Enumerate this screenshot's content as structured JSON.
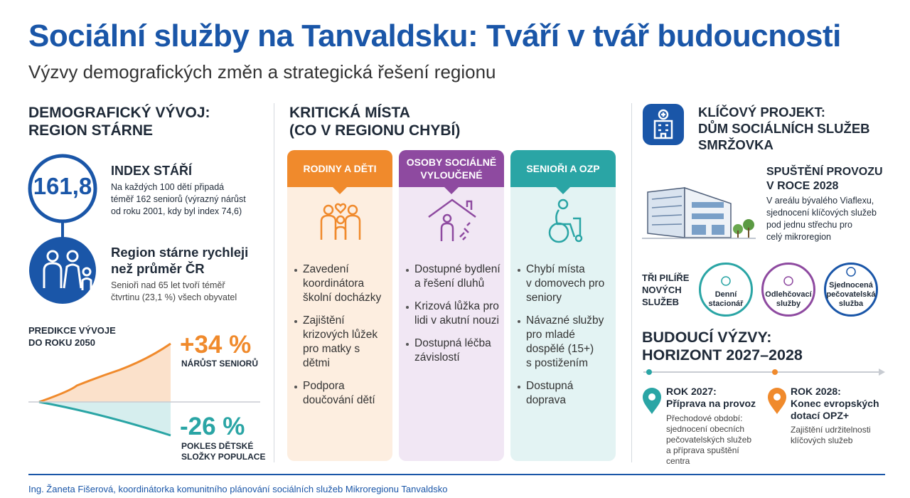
{
  "header": {
    "title": "Sociální služby na Tanvaldsku: Tváří v tvář budoucnosti",
    "subtitle": "Výzvy demografických změn a strategická řešení regionu"
  },
  "demography": {
    "heading": [
      "DEMOGRAFICKÝ VÝVOJ:",
      "REGION STÁRNE"
    ],
    "index": {
      "value": "161,8",
      "title": "INDEX STÁŘÍ",
      "text": [
        "Na každých 100 dětí připadá",
        "téměř 162 seniorů (výrazný nárůst",
        "od roku 2001, kdy byl index 74,6)"
      ]
    },
    "aging": {
      "title": [
        "Region stárne rychleji",
        "než průměr ČR"
      ],
      "text": [
        "Senioři nad 65 let tvoří téměř",
        "čtvrtinu (23,1 %) všech obyvatel"
      ]
    },
    "prediction": {
      "title": [
        "PREDIKCE VÝVOJE",
        "DO ROKU 2050"
      ],
      "growth": "+34 %",
      "growth_label": [
        "NÁRŮST SENIORŮ"
      ],
      "decline": "-26 %",
      "decline_label": [
        "POKLES DĚTSKÉ",
        "SLOŽKY POPULACE"
      ]
    }
  },
  "critical": {
    "heading": [
      "KRITICKÁ MÍSTA",
      "(CO V REGIONU CHYBÍ)"
    ],
    "columns": [
      {
        "title": [
          "RODINY A DĚTI"
        ],
        "items": [
          [
            "Zavedení",
            "koordinátora",
            "školní docházky"
          ],
          [
            "Zajištění",
            "krizových lůžek",
            "pro matky s dětmi"
          ],
          [
            "Podpora",
            "doučování dětí"
          ]
        ]
      },
      {
        "title": [
          "OSOBY SOCIÁLNĚ",
          "VYLOUČENÉ"
        ],
        "items": [
          [
            "Dostupné bydlení",
            "a řešení dluhů"
          ],
          [
            "Krizová lůžka pro",
            "lidi v akutní nouzi"
          ],
          [
            "Dostupná léčba",
            "závislostí"
          ]
        ]
      },
      {
        "title": [
          "SENIOŘI A OZP"
        ],
        "items": [
          [
            "Chybí místa",
            "v domovech pro",
            "seniory"
          ],
          [
            "Návazné služby",
            "pro mladé",
            "dospělé (15+)",
            "s postižením"
          ],
          [
            "Dostupná doprava"
          ]
        ]
      }
    ]
  },
  "project": {
    "heading": [
      "KLÍČOVÝ PROJEKT:",
      "DŮM SOCIÁLNÍCH SLUŽEB",
      "SMRŽOVKA"
    ],
    "launch": {
      "title": [
        "SPUŠTĚNÍ PROVOZU",
        "V ROCE 2028"
      ],
      "text": [
        "V areálu bývalého Viaflexu,",
        "sjednocení klíčových služeb",
        "pod jednu střechu pro",
        "celý mikroregion"
      ]
    },
    "pillars": {
      "title": [
        "TŘI PILÍŘE",
        "NOVÝCH",
        "SLUŽEB"
      ],
      "items": [
        [
          "Denní",
          "stacionář"
        ],
        [
          "Odlehčovací",
          "služby"
        ],
        [
          "Sjednocená",
          "pečovatelská",
          "služba"
        ]
      ]
    },
    "future": {
      "heading": [
        "BUDOUCÍ VÝZVY:",
        "HORIZONT 2027–2028"
      ],
      "milestones": [
        {
          "title": [
            "ROK 2027:",
            "Příprava na provoz"
          ],
          "text": [
            "Přechodové období:",
            "sjednocení obecních",
            "pečovatelských služeb",
            "a příprava spuštění",
            "centra"
          ]
        },
        {
          "title": [
            "ROK 2028:",
            "Konec evropských",
            "dotací OPZ+"
          ],
          "text": [
            "Zajištění udržitelnosti",
            "klíčových služeb"
          ]
        }
      ]
    }
  },
  "footer": "Ing. Žaneta Fišerová, koordinátorka komunitního plánování sociálních služeb Mikroregionu Tanvaldsko"
}
